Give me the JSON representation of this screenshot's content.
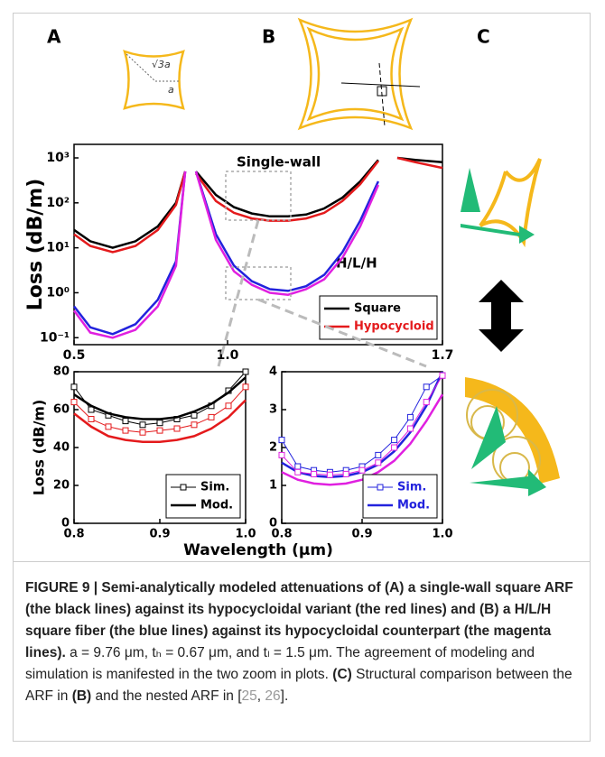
{
  "panels": [
    "A",
    "B",
    "C"
  ],
  "diagram_labels": [
    "√3a",
    "a"
  ],
  "chart_data": [
    {
      "type": "line",
      "ylabel": "Loss (dB/m)",
      "log_y": true,
      "x": [
        0.5,
        0.553,
        0.626,
        0.7,
        0.773,
        0.832,
        0.862,
        0.879,
        0.897,
        0.962,
        1.021,
        1.079,
        1.138,
        1.197,
        1.256,
        1.315,
        1.374,
        1.432,
        1.491,
        1.535,
        1.553,
        1.612,
        1.7
      ],
      "xlim": [
        0.5,
        1.7
      ],
      "xticks": [
        0.5,
        {
          "value": 1.0,
          "label": "1.0"
        },
        1.7
      ],
      "ylim": [
        0.07,
        2000
      ],
      "yticks": [
        {
          "value": 0.1,
          "label": "10⁻¹"
        },
        {
          "value": 1,
          "label": "10⁰"
        },
        {
          "value": 10,
          "label": "10¹"
        },
        {
          "value": 100,
          "label": "10²"
        },
        {
          "value": 1000,
          "label": "10³"
        }
      ],
      "legend": "lower right",
      "annotations": [
        "Single-wall",
        "H/L/H"
      ],
      "series": [
        {
          "name": "Square",
          "color": "#000000",
          "values": [
            25,
            14,
            10,
            14,
            30,
            100,
            500,
            null,
            500,
            150,
            80,
            58,
            50,
            50,
            55,
            75,
            130,
            300,
            900,
            null,
            1000,
            900,
            800
          ]
        },
        {
          "name": "Hypocycloid",
          "color": "#e41a1c",
          "values": [
            20,
            11,
            8,
            11,
            25,
            90,
            500,
            null,
            450,
            110,
            60,
            45,
            40,
            40,
            45,
            60,
            110,
            260,
            850,
            null,
            1000,
            800,
            600
          ]
        },
        {
          "color": "#2222dd",
          "values": [
            0.5,
            0.17,
            0.12,
            0.2,
            0.7,
            5,
            500,
            null,
            500,
            20,
            4,
            1.8,
            1.2,
            1.1,
            1.4,
            2.5,
            8,
            40,
            300,
            null,
            null,
            null,
            null
          ]
        },
        {
          "color": "#e020e0",
          "values": [
            0.4,
            0.13,
            0.1,
            0.15,
            0.5,
            4,
            500,
            null,
            500,
            15,
            3,
            1.5,
            1.0,
            0.9,
            1.2,
            2,
            6,
            30,
            250,
            null,
            null,
            null,
            null
          ]
        }
      ]
    },
    {
      "type": "line",
      "ylabel": "Loss (dB/m)",
      "xlabel": "Wavelength (μm)",
      "x": [
        0.8,
        0.82,
        0.84,
        0.86,
        0.88,
        0.9,
        0.92,
        0.94,
        0.96,
        0.98,
        1.0
      ],
      "xlim": [
        0.8,
        1.0
      ],
      "xticks": [
        0.8,
        0.9,
        {
          "value": 1.0,
          "label": "1.0"
        }
      ],
      "ylim": [
        0,
        80
      ],
      "yticks": [
        0,
        20,
        40,
        60,
        80
      ],
      "legend": "lower right",
      "series": [
        {
          "name": "Sim.",
          "color": "#000000",
          "marker": "square",
          "values": [
            72,
            60,
            57,
            54,
            52,
            53,
            55,
            57,
            62,
            70,
            80
          ]
        },
        {
          "name": "Mod.",
          "color": "#000000",
          "values": [
            68,
            62,
            58,
            56,
            55,
            55,
            56,
            59,
            63,
            69,
            77
          ]
        },
        {
          "color": "#e41a1c",
          "marker": "square",
          "values": [
            64,
            55,
            51,
            49,
            48,
            49,
            50,
            52,
            56,
            62,
            72
          ]
        },
        {
          "color": "#e41a1c",
          "values": [
            58,
            51,
            46,
            44,
            43,
            43,
            44,
            46,
            50,
            56,
            65
          ]
        }
      ]
    },
    {
      "type": "line",
      "x": [
        0.8,
        0.82,
        0.84,
        0.86,
        0.88,
        0.9,
        0.92,
        0.94,
        0.96,
        0.98,
        1.0
      ],
      "xlim": [
        0.8,
        1.0
      ],
      "xticks": [
        0.8,
        0.9,
        {
          "value": 1.0,
          "label": "1.0"
        }
      ],
      "ylim": [
        0,
        4
      ],
      "yticks": [
        0,
        1,
        2,
        3,
        4
      ],
      "legend": "lower right",
      "series": [
        {
          "name": "Sim.",
          "color": "#2222dd",
          "marker": "square",
          "values": [
            2.2,
            1.5,
            1.4,
            1.35,
            1.4,
            1.5,
            1.8,
            2.2,
            2.8,
            3.6,
            3.9
          ]
        },
        {
          "name": "Mod.",
          "color": "#2222dd",
          "values": [
            1.6,
            1.35,
            1.25,
            1.22,
            1.25,
            1.35,
            1.55,
            1.9,
            2.4,
            3.1,
            4.0
          ]
        },
        {
          "color": "#e020e0",
          "marker": "square",
          "values": [
            1.8,
            1.35,
            1.3,
            1.28,
            1.3,
            1.4,
            1.6,
            2.0,
            2.5,
            3.2,
            3.9
          ]
        },
        {
          "color": "#e020e0",
          "values": [
            1.35,
            1.15,
            1.05,
            1.02,
            1.05,
            1.15,
            1.35,
            1.65,
            2.1,
            2.7,
            3.4
          ]
        }
      ]
    }
  ],
  "caption": [
    {
      "text": "FIGURE 9 | Semi-analytically modeled attenuations of (A) a single-wall square ARF (the black lines) against its hypocycloidal variant (the red lines) and (B) a H/L/H square fiber (the blue lines) against its hypocycloidal counterpart (the magenta lines).",
      "bold": true
    },
    {
      "text": " a = 9.76 μm, tₕ = 0.67 μm, and tₗ = 1.5 μm. The agreement of modeling and simulation is manifested in the two zoom in plots. ",
      "bold": false
    },
    {
      "text": "(C)",
      "bold": true
    },
    {
      "text": " Structural comparison between the ARF in ",
      "bold": false
    },
    {
      "text": "(B)",
      "bold": true
    },
    {
      "text": " and the nested ARF in [",
      "bold": false
    },
    {
      "text": "25",
      "bold": false,
      "link": true
    },
    {
      "text": ", ",
      "bold": false
    },
    {
      "text": "26",
      "bold": false,
      "link": true
    },
    {
      "text": "].",
      "bold": false
    }
  ]
}
